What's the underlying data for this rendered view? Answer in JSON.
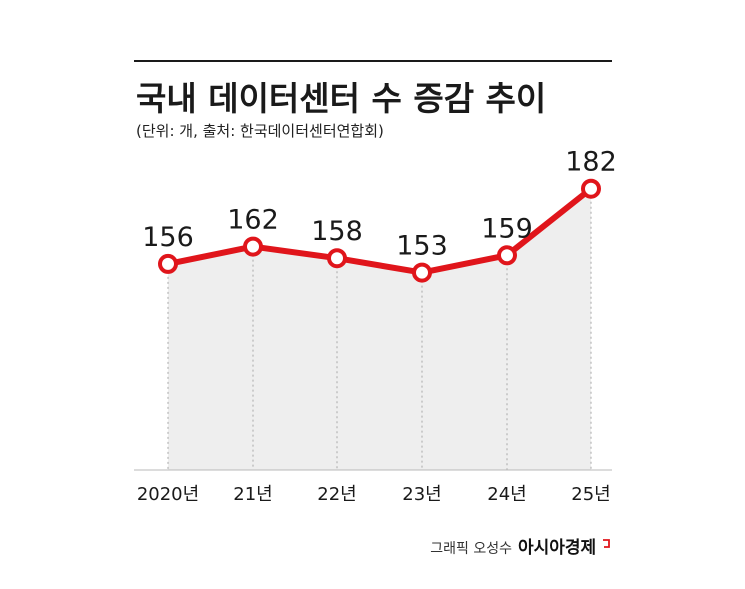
{
  "chart_data": {
    "type": "line",
    "title": "국내 데이터센터 수 증감 추이",
    "subtitle": "(단위: 개, 출처: 한국데이터센터연합회)",
    "categories": [
      "2020년",
      "21년",
      "22년",
      "23년",
      "24년",
      "25년"
    ],
    "values": [
      156,
      162,
      158,
      153,
      159,
      182
    ],
    "data_labels": [
      "156",
      "162",
      "158",
      "153",
      "159",
      "182"
    ],
    "ylim": [
      100,
      190
    ],
    "grid": false,
    "colors": {
      "line": "#e0151b",
      "area": "#eeeeee",
      "marker_fill": "#ffffff"
    }
  },
  "credit": {
    "author": "그래픽 오성수",
    "brand": "아시아경제"
  }
}
